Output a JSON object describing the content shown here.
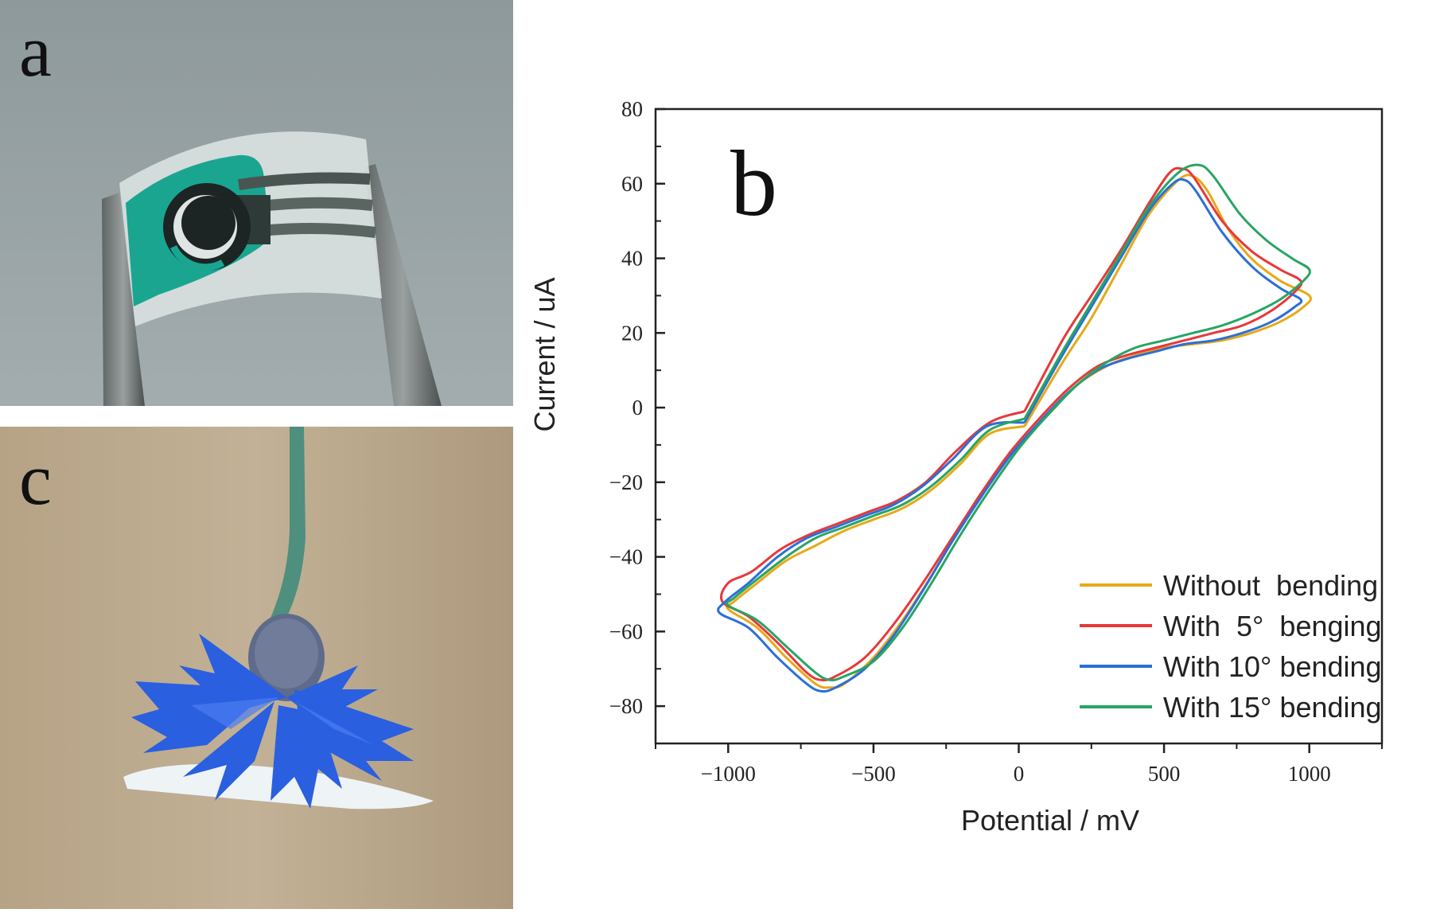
{
  "panels": {
    "a": {
      "letter": "a"
    },
    "b": {
      "letter": "b"
    },
    "c": {
      "letter": "c"
    }
  },
  "colors": {
    "photo_a_background": "#8f9a9d",
    "sensor_teal": "#1aa591",
    "flower_blue": "#2a5fe0",
    "photo_c_background": "#b9a78c"
  },
  "chart_data": {
    "type": "line",
    "title": "",
    "xlabel": "Potential / mV",
    "ylabel": "Current / uA",
    "xlim": [
      -1250,
      1250
    ],
    "ylim": [
      -90,
      80
    ],
    "xticks": [
      -1000,
      -500,
      0,
      500,
      1000
    ],
    "xtick_labels": [
      "−1000",
      "−500",
      "0",
      "500",
      "1000"
    ],
    "yticks": [
      80,
      60,
      40,
      20,
      0,
      -20,
      -40,
      -60,
      -80
    ],
    "ytick_labels": [
      "80",
      "60",
      "40",
      "20",
      "0",
      "−20",
      "−40",
      "−60",
      "−80"
    ],
    "grid": false,
    "legend_position": "bottom-right",
    "series": [
      {
        "name": "Without  bending",
        "color": "#e8a817",
        "points": [
          [
            20,
            -5
          ],
          [
            150,
            12
          ],
          [
            250,
            24
          ],
          [
            350,
            38
          ],
          [
            450,
            52
          ],
          [
            550,
            61
          ],
          [
            600,
            62
          ],
          [
            650,
            58
          ],
          [
            720,
            48
          ],
          [
            800,
            40
          ],
          [
            900,
            34
          ],
          [
            1000,
            30
          ],
          [
            980,
            27
          ],
          [
            900,
            23
          ],
          [
            800,
            20
          ],
          [
            700,
            18
          ],
          [
            600,
            17
          ],
          [
            500,
            16
          ],
          [
            400,
            14
          ],
          [
            300,
            11
          ],
          [
            200,
            6
          ],
          [
            100,
            -2
          ],
          [
            0,
            -10
          ],
          [
            -100,
            -20
          ],
          [
            -200,
            -32
          ],
          [
            -300,
            -45
          ],
          [
            -400,
            -57
          ],
          [
            -500,
            -67
          ],
          [
            -600,
            -74
          ],
          [
            -650,
            -75
          ],
          [
            -700,
            -74
          ],
          [
            -800,
            -67
          ],
          [
            -900,
            -59
          ],
          [
            -1000,
            -54
          ],
          [
            -980,
            -52
          ],
          [
            -900,
            -47
          ],
          [
            -800,
            -41
          ],
          [
            -700,
            -37
          ],
          [
            -600,
            -33
          ],
          [
            -500,
            -30
          ],
          [
            -400,
            -27
          ],
          [
            -300,
            -22
          ],
          [
            -200,
            -15
          ],
          [
            -100,
            -7
          ],
          [
            20,
            -5
          ]
        ]
      },
      {
        "name": "With  5°  benging",
        "color": "#e8383a",
        "points": [
          [
            20,
            -1
          ],
          [
            150,
            18
          ],
          [
            250,
            30
          ],
          [
            350,
            42
          ],
          [
            450,
            55
          ],
          [
            520,
            63
          ],
          [
            560,
            64
          ],
          [
            600,
            62
          ],
          [
            700,
            50
          ],
          [
            800,
            42
          ],
          [
            900,
            37
          ],
          [
            970,
            34
          ],
          [
            950,
            31
          ],
          [
            870,
            26
          ],
          [
            770,
            22
          ],
          [
            670,
            20
          ],
          [
            570,
            18
          ],
          [
            470,
            16
          ],
          [
            370,
            14
          ],
          [
            270,
            11
          ],
          [
            170,
            5
          ],
          [
            70,
            -3
          ],
          [
            -30,
            -12
          ],
          [
            -130,
            -23
          ],
          [
            -230,
            -35
          ],
          [
            -330,
            -47
          ],
          [
            -430,
            -58
          ],
          [
            -530,
            -67
          ],
          [
            -630,
            -72
          ],
          [
            -680,
            -73
          ],
          [
            -730,
            -71
          ],
          [
            -830,
            -63
          ],
          [
            -930,
            -56
          ],
          [
            -1020,
            -52
          ],
          [
            -1000,
            -47
          ],
          [
            -920,
            -44
          ],
          [
            -820,
            -38
          ],
          [
            -720,
            -34
          ],
          [
            -620,
            -31
          ],
          [
            -520,
            -28
          ],
          [
            -420,
            -25
          ],
          [
            -320,
            -20
          ],
          [
            -220,
            -12
          ],
          [
            -100,
            -4
          ],
          [
            20,
            -1
          ]
        ]
      },
      {
        "name": "With 10° bending",
        "color": "#2b6fd8",
        "points": [
          [
            20,
            -4
          ],
          [
            150,
            14
          ],
          [
            250,
            27
          ],
          [
            350,
            40
          ],
          [
            450,
            53
          ],
          [
            530,
            60
          ],
          [
            570,
            61
          ],
          [
            610,
            58
          ],
          [
            700,
            47
          ],
          [
            800,
            38
          ],
          [
            900,
            32
          ],
          [
            970,
            29
          ],
          [
            950,
            27
          ],
          [
            870,
            23
          ],
          [
            770,
            20
          ],
          [
            670,
            18
          ],
          [
            570,
            17
          ],
          [
            470,
            15
          ],
          [
            370,
            13
          ],
          [
            270,
            10
          ],
          [
            170,
            4
          ],
          [
            70,
            -4
          ],
          [
            -30,
            -13
          ],
          [
            -130,
            -24
          ],
          [
            -230,
            -36
          ],
          [
            -330,
            -49
          ],
          [
            -430,
            -61
          ],
          [
            -530,
            -70
          ],
          [
            -630,
            -75
          ],
          [
            -680,
            -76
          ],
          [
            -730,
            -74
          ],
          [
            -830,
            -67
          ],
          [
            -930,
            -59
          ],
          [
            -1030,
            -55
          ],
          [
            -1010,
            -52
          ],
          [
            -930,
            -47
          ],
          [
            -830,
            -40
          ],
          [
            -730,
            -35
          ],
          [
            -630,
            -32
          ],
          [
            -530,
            -29
          ],
          [
            -430,
            -26
          ],
          [
            -330,
            -21
          ],
          [
            -230,
            -14
          ],
          [
            -110,
            -5
          ],
          [
            20,
            -4
          ]
        ]
      },
      {
        "name": "With 15° bending",
        "color": "#28a563",
        "points": [
          [
            20,
            -3
          ],
          [
            150,
            15
          ],
          [
            250,
            28
          ],
          [
            350,
            41
          ],
          [
            450,
            54
          ],
          [
            550,
            63
          ],
          [
            620,
            65
          ],
          [
            670,
            62
          ],
          [
            760,
            52
          ],
          [
            850,
            45
          ],
          [
            940,
            40
          ],
          [
            1000,
            37
          ],
          [
            980,
            34
          ],
          [
            900,
            29
          ],
          [
            800,
            25
          ],
          [
            700,
            22
          ],
          [
            600,
            20
          ],
          [
            500,
            18
          ],
          [
            400,
            16
          ],
          [
            300,
            12
          ],
          [
            200,
            6
          ],
          [
            100,
            -2
          ],
          [
            0,
            -11
          ],
          [
            -100,
            -22
          ],
          [
            -200,
            -34
          ],
          [
            -300,
            -47
          ],
          [
            -400,
            -59
          ],
          [
            -500,
            -68
          ],
          [
            -600,
            -72
          ],
          [
            -650,
            -73
          ],
          [
            -700,
            -71
          ],
          [
            -800,
            -64
          ],
          [
            -900,
            -57
          ],
          [
            -1000,
            -53
          ],
          [
            -980,
            -51
          ],
          [
            -900,
            -46
          ],
          [
            -800,
            -40
          ],
          [
            -700,
            -35
          ],
          [
            -600,
            -32
          ],
          [
            -500,
            -29
          ],
          [
            -400,
            -26
          ],
          [
            -300,
            -21
          ],
          [
            -200,
            -14
          ],
          [
            -100,
            -6
          ],
          [
            20,
            -3
          ]
        ]
      }
    ]
  }
}
